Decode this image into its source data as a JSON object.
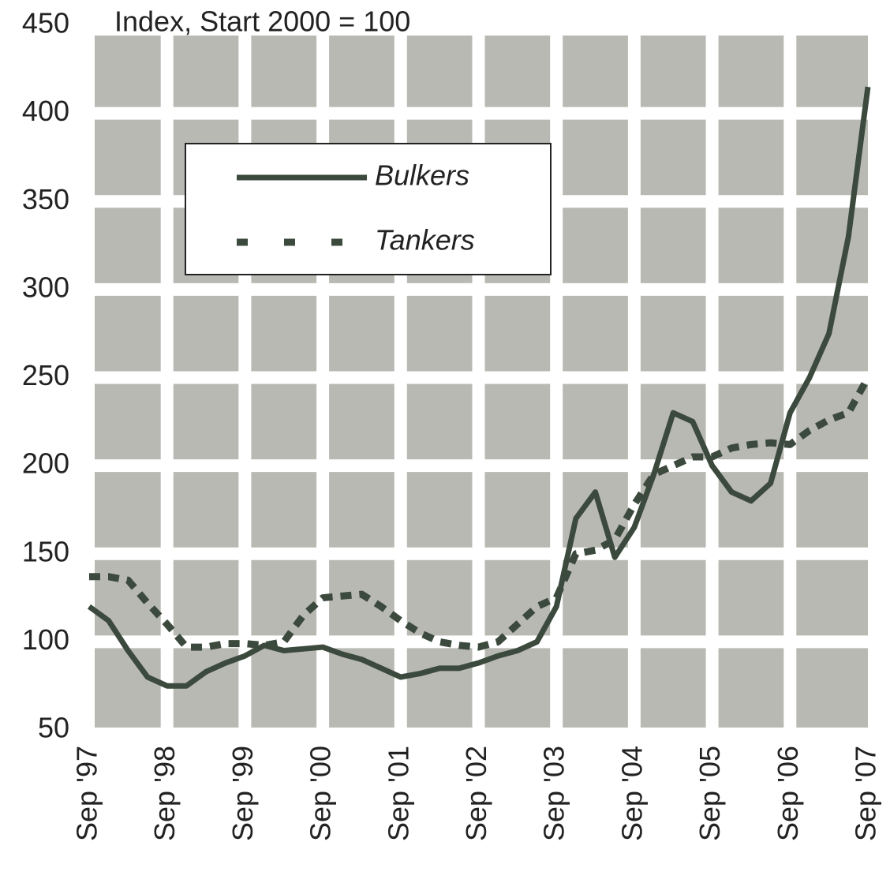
{
  "chart_data": {
    "type": "line",
    "title": "Index, Start 2000 = 100",
    "categories": [
      "Sep '97",
      null,
      null,
      null,
      "Sep '98",
      null,
      null,
      null,
      "Sep '99",
      null,
      null,
      null,
      "Sep '00",
      null,
      null,
      null,
      "Sep '01",
      null,
      null,
      null,
      "Sep '02",
      null,
      null,
      null,
      "Sep '03",
      null,
      null,
      null,
      "Sep '04",
      null,
      null,
      null,
      "Sep '05",
      null,
      null,
      null,
      "Sep '06",
      null,
      null,
      null,
      "Sep '07"
    ],
    "series": [
      {
        "name": "Bulkers",
        "color": "#3b4a3c",
        "dash": false,
        "values": [
          120,
          112,
          95,
          80,
          75,
          75,
          83,
          88,
          92,
          98,
          95,
          96,
          97,
          93,
          90,
          85,
          80,
          82,
          85,
          85,
          88,
          92,
          95,
          100,
          120,
          170,
          185,
          148,
          165,
          195,
          230,
          225,
          200,
          185,
          180,
          190,
          230,
          250,
          275,
          330,
          415
        ]
      },
      {
        "name": "Tankers",
        "color": "#3b4a3c",
        "dash": true,
        "values": [
          137,
          137,
          135,
          122,
          110,
          97,
          97,
          99,
          99,
          98,
          100,
          115,
          125,
          126,
          127,
          120,
          112,
          105,
          100,
          98,
          97,
          100,
          110,
          120,
          125,
          150,
          152,
          158,
          178,
          195,
          200,
          205,
          205,
          210,
          212,
          213,
          212,
          220,
          226,
          230,
          250
        ]
      }
    ],
    "ylim": [
      50,
      450
    ],
    "yticks": [
      50,
      100,
      150,
      200,
      250,
      300,
      350,
      400,
      450
    ],
    "grid": true,
    "legend": "upper left"
  }
}
